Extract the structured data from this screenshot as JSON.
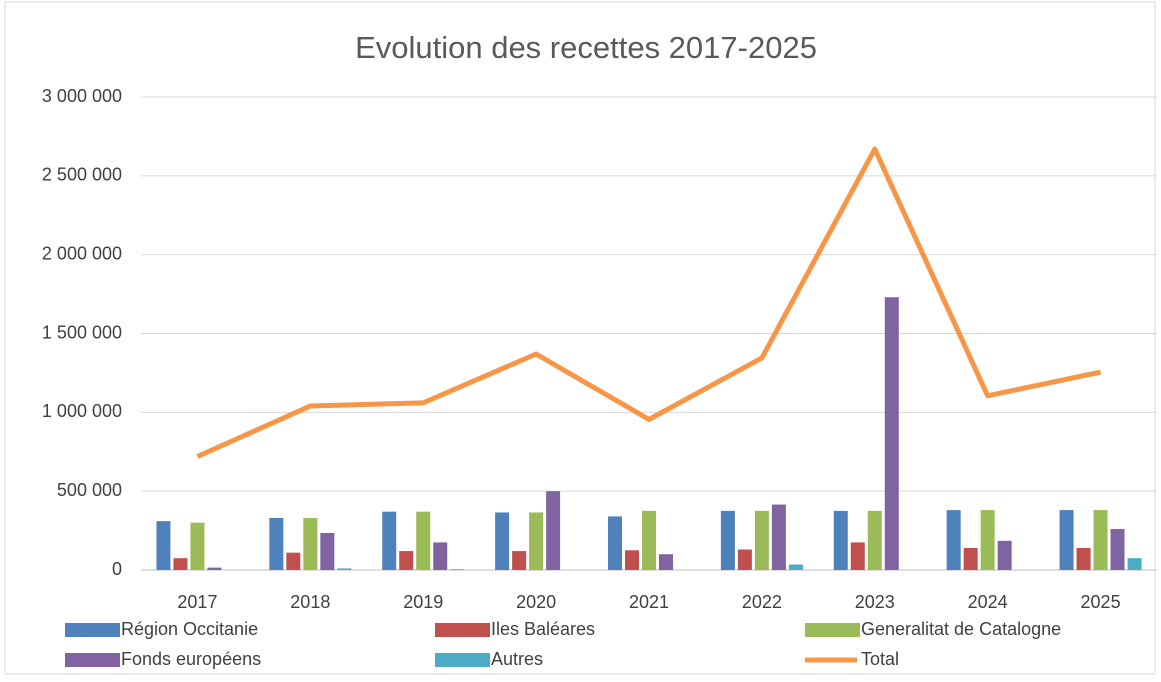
{
  "chart_data": {
    "type": "bar",
    "title": "Evolution des recettes 2017-2025",
    "categories": [
      "2017",
      "2018",
      "2019",
      "2020",
      "2021",
      "2022",
      "2023",
      "2024",
      "2025"
    ],
    "series": [
      {
        "name": "Région Occitanie",
        "color": "#4f81bd",
        "values": [
          310000,
          330000,
          370000,
          365000,
          340000,
          375000,
          375000,
          380000,
          380000
        ]
      },
      {
        "name": "Iles Baléares",
        "color": "#c0504d",
        "values": [
          75000,
          110000,
          120000,
          120000,
          125000,
          130000,
          175000,
          140000,
          140000
        ]
      },
      {
        "name": "Generalitat de Catalogne",
        "color": "#9bbb59",
        "values": [
          300000,
          330000,
          370000,
          365000,
          375000,
          375000,
          375000,
          380000,
          380000
        ]
      },
      {
        "name": "Fonds européens",
        "color": "#8064a2",
        "values": [
          15000,
          235000,
          175000,
          500000,
          100000,
          415000,
          1730000,
          185000,
          260000
        ]
      },
      {
        "name": "Autres",
        "color": "#4bacc6",
        "values": [
          0,
          10000,
          5000,
          0,
          0,
          35000,
          0,
          0,
          75000
        ]
      },
      {
        "name": "Total",
        "color": "#f79646",
        "type": "line",
        "values": [
          720000,
          1040000,
          1060000,
          1370000,
          955000,
          1345000,
          2670000,
          1105000,
          1255000
        ]
      }
    ],
    "ylim": [
      0,
      3000000
    ],
    "yticks": [
      0,
      {
        "value": 500000,
        "label": "500 000"
      },
      {
        "value": 1000000,
        "label": "1 000 000"
      },
      {
        "value": 1500000,
        "label": "1 500 000"
      },
      {
        "value": 2000000,
        "label": "2 000 000"
      },
      {
        "value": 2500000,
        "label": "2 500 000"
      },
      {
        "value": 3000000,
        "label": "3 000 000"
      }
    ],
    "grid": true,
    "legend": "bottom"
  }
}
